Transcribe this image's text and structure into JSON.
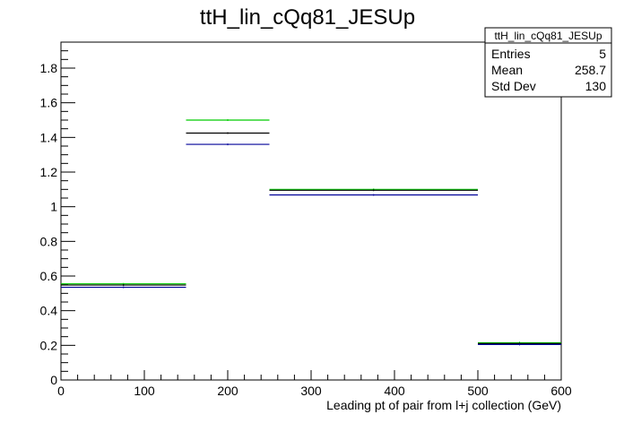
{
  "chart_data": {
    "type": "step",
    "title": "ttH_lin_cQq81_JESUp",
    "xlabel": "Leading pt of pair from l+j collection (GeV)",
    "ylabel": "",
    "xlim": [
      0,
      600
    ],
    "ylim": [
      0,
      1.95
    ],
    "x_ticks": [
      "0",
      "100",
      "200",
      "300",
      "400",
      "500",
      "600"
    ],
    "y_ticks": [
      "0",
      "0.2",
      "0.4",
      "0.6",
      "0.8",
      "1",
      "1.2",
      "1.4",
      "1.6",
      "1.8"
    ],
    "bin_edges": [
      0,
      150,
      250,
      500,
      600
    ],
    "series": [
      {
        "color": "#00cc00",
        "values": [
          0.555,
          1.5,
          1.1,
          0.215
        ]
      },
      {
        "color": "#000000",
        "values": [
          0.548,
          1.425,
          1.095,
          0.21
        ]
      },
      {
        "color": "#000099",
        "values": [
          0.535,
          1.36,
          1.068,
          0.205
        ]
      }
    ],
    "grid": false,
    "stats_box": {
      "title": "ttH_lin_cQq81_JESUp",
      "rows": [
        {
          "label": "Entries",
          "value": "5"
        },
        {
          "label": "Mean",
          "value": "258.7"
        },
        {
          "label": "Std Dev",
          "value": "130"
        }
      ]
    }
  }
}
